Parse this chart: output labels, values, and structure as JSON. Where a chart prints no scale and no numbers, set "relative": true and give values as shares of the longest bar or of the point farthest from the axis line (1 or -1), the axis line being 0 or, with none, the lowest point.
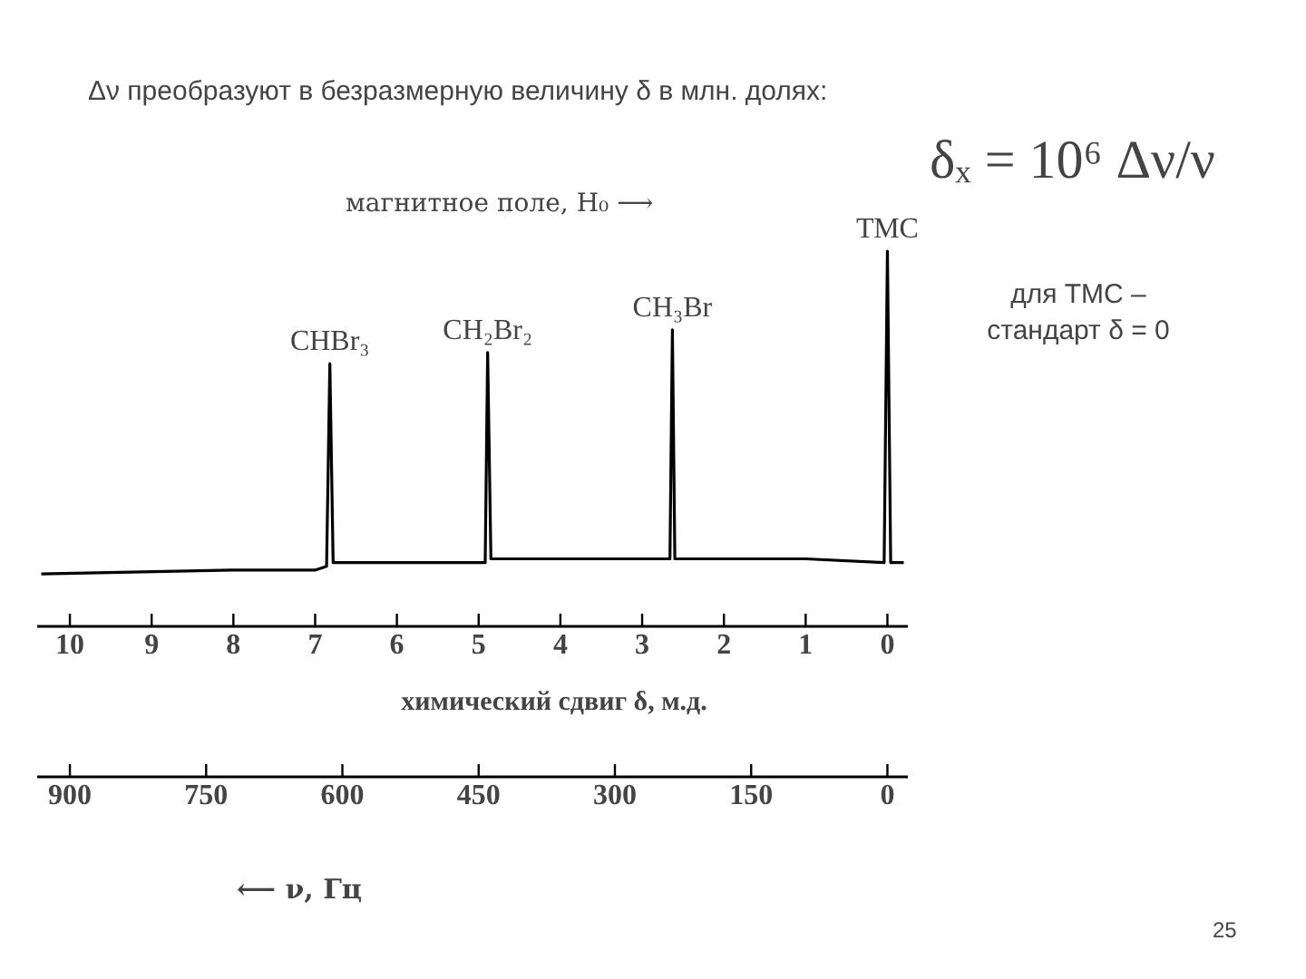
{
  "chart_data": {
    "type": "line",
    "relative": true,
    "title": "Δν преобразуют в безразмерную величину δ в млн. долях:",
    "xlabel": "химический сдвиг δ, м.д.",
    "x2label": "⟵ ν, Гц",
    "xlim": [
      10.4,
      -0.25
    ],
    "xticks": [
      10,
      9,
      8,
      7,
      6,
      5,
      4,
      3,
      2,
      1,
      0
    ],
    "x2lim": [
      936,
      -22.5
    ],
    "x2ticks": [
      900,
      750,
      600,
      450,
      300,
      150,
      0
    ],
    "series": [
      {
        "color": "#000000",
        "x": [
          10.35,
          8,
          7.0,
          6.86,
          6.82,
          6.78,
          5.0,
          4.92,
          4.89,
          4.85,
          2.7,
          2.66,
          2.63,
          2.6,
          1.0,
          0.04,
          0.0,
          -0.04,
          -0.2
        ],
        "values": [
          0.14,
          0.15,
          0.15,
          0.16,
          0.7,
          0.17,
          0.17,
          0.17,
          0.73,
          0.18,
          0.18,
          0.18,
          0.79,
          0.18,
          0.18,
          0.17,
          1.0,
          0.17,
          0.17
        ]
      }
    ],
    "annotations": [
      {
        "text": "CHBr₃",
        "x": 6.82,
        "y": 0.7
      },
      {
        "text": "CH₂Br₂",
        "x": 4.89,
        "y": 0.73
      },
      {
        "text": "CH₃Br",
        "x": 2.63,
        "y": 0.79
      },
      {
        "text": "ТМС",
        "x": 0.0,
        "y": 1.0
      },
      "δₓ = 10⁶ Δν/ν",
      "магнитное поле, H₀ ⟶",
      "для ТМС –\nстандарт δ = 0",
      "25"
    ],
    "grid": false
  }
}
